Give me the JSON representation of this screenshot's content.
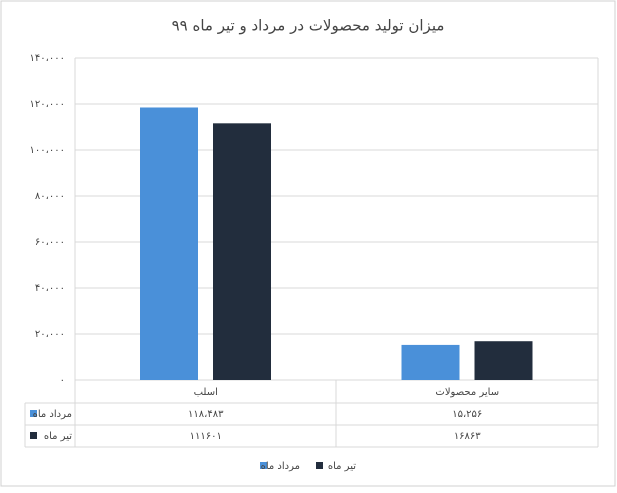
{
  "chart_data": {
    "type": "bar",
    "title": "میزان تولید محصولات در مرداد و تیر ماه ۹۹",
    "categories": [
      "اسلب",
      "سایر محصولات"
    ],
    "series": [
      {
        "name": "مرداد ماه",
        "color": "#4a90d9",
        "values": [
          118483,
          15256
        ],
        "value_labels": [
          "۱۱۸،۴۸۳",
          "۱۵،۲۵۶"
        ]
      },
      {
        "name": "تیر ماه",
        "color": "#222d3d",
        "values": [
          111601,
          16863
        ],
        "value_labels": [
          "۱۱۱۶۰۱",
          "۱۶۸۶۳"
        ]
      }
    ],
    "ylim": [
      0,
      140000
    ],
    "yticks": [
      {
        "value": 0,
        "label": "۰"
      },
      {
        "value": 20000,
        "label": "۲۰،۰۰۰"
      },
      {
        "value": 40000,
        "label": "۴۰،۰۰۰"
      },
      {
        "value": 60000,
        "label": "۶۰،۰۰۰"
      },
      {
        "value": 80000,
        "label": "۸۰،۰۰۰"
      },
      {
        "value": 100000,
        "label": "۱۰۰،۰۰۰"
      },
      {
        "value": 120000,
        "label": "۱۲۰،۰۰۰"
      },
      {
        "value": 140000,
        "label": "۱۴۰،۰۰۰"
      }
    ],
    "grid": true
  }
}
